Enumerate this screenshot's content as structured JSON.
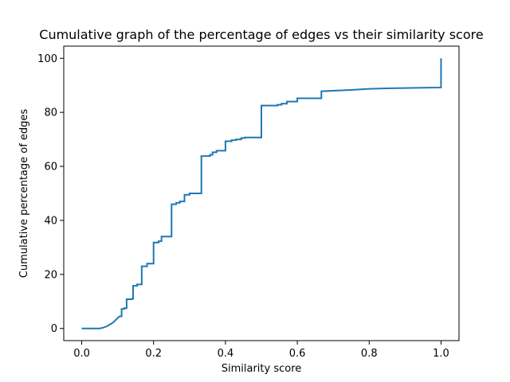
{
  "chart_data": {
    "type": "line",
    "title": "Cumulative graph of the percentage of edges vs their similarity score",
    "xlabel": "Similarity score",
    "ylabel": "Cumulative percentage of edges",
    "xlim": [
      -0.05,
      1.05
    ],
    "ylim": [
      -4.5,
      104.5
    ],
    "xticks": [
      0.0,
      0.2,
      0.4,
      0.6,
      0.8,
      1.0
    ],
    "xtick_labels": [
      "0.0",
      "0.2",
      "0.4",
      "0.6",
      "0.8",
      "1.0"
    ],
    "yticks": [
      0,
      20,
      40,
      60,
      80,
      100
    ],
    "ytick_labels": [
      "0",
      "20",
      "40",
      "60",
      "80",
      "100"
    ],
    "grid": false,
    "line_color": "#1f77b4",
    "series": [
      {
        "x": [
          0.0,
          0.05,
          0.06,
          0.07,
          0.075,
          0.08,
          0.085,
          0.09,
          0.09,
          0.095,
          0.095,
          0.1,
          0.1,
          0.105,
          0.105,
          0.111,
          0.111,
          0.118,
          0.118,
          0.125,
          0.125,
          0.14,
          0.14,
          0.143,
          0.143,
          0.154,
          0.154,
          0.167,
          0.167,
          0.182,
          0.182,
          0.2,
          0.2,
          0.214,
          0.214,
          0.222,
          0.222,
          0.25,
          0.25,
          0.263,
          0.263,
          0.273,
          0.273,
          0.286,
          0.286,
          0.3,
          0.3,
          0.333,
          0.333,
          0.357,
          0.357,
          0.364,
          0.364,
          0.375,
          0.375,
          0.4,
          0.4,
          0.417,
          0.417,
          0.43,
          0.43,
          0.444,
          0.444,
          0.455,
          0.455,
          0.5,
          0.5,
          0.545,
          0.545,
          0.556,
          0.556,
          0.571,
          0.571,
          0.6,
          0.6,
          0.667,
          0.667,
          0.7,
          0.75,
          0.8,
          0.85,
          0.9,
          0.95,
          1.0,
          1.0
        ],
        "y": [
          0,
          0,
          0.3,
          0.8,
          1.2,
          1.6,
          2.0,
          2.5,
          2.5,
          3.2,
          3.2,
          3.8,
          3.8,
          4.5,
          4.5,
          4.5,
          7.2,
          7.2,
          7.5,
          7.5,
          10.8,
          10.8,
          11.0,
          11.0,
          15.8,
          15.8,
          16.3,
          16.3,
          23.0,
          23.0,
          24.0,
          24.0,
          31.8,
          31.8,
          32.3,
          32.3,
          34.0,
          34.0,
          46.0,
          46.0,
          46.5,
          46.5,
          47.0,
          47.0,
          49.5,
          49.5,
          50.0,
          50.0,
          63.8,
          63.8,
          64.3,
          64.3,
          65.2,
          65.2,
          65.8,
          65.8,
          69.3,
          69.3,
          69.7,
          69.7,
          70.0,
          70.0,
          70.5,
          70.5,
          70.7,
          70.7,
          82.5,
          82.5,
          82.8,
          82.8,
          83.2,
          83.2,
          84.0,
          84.0,
          85.2,
          85.2,
          87.8,
          88.0,
          88.3,
          88.7,
          88.9,
          89.0,
          89.1,
          89.2,
          100.0
        ]
      }
    ]
  }
}
